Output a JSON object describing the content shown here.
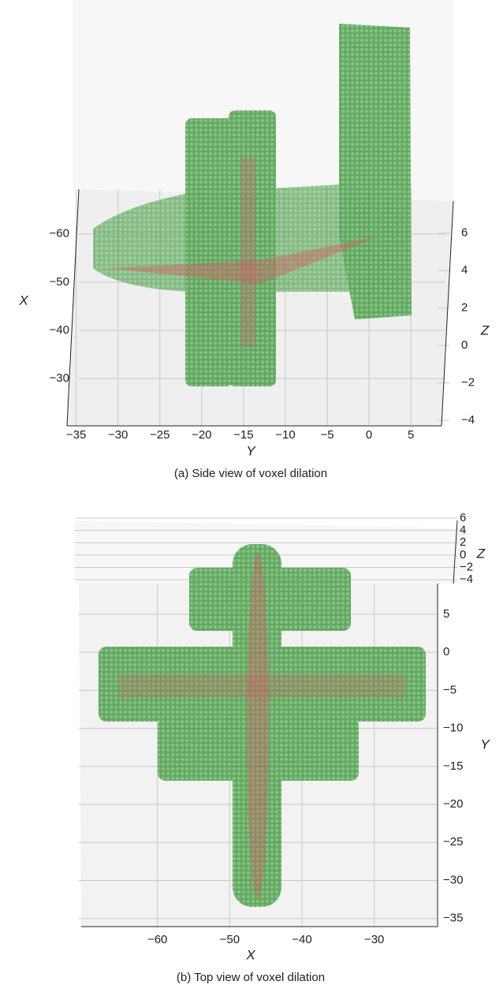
{
  "chart_data": [
    {
      "type": "scatter3d",
      "caption": "(a) Side view of voxel dilation",
      "xlabel": "X",
      "ylabel": "Y",
      "zlabel": "Z",
      "xlim": [
        -67,
        -22
      ],
      "ylim": [
        -36,
        8
      ],
      "zlim": [
        -4.5,
        7
      ],
      "xticks": [
        {
          "value": -60,
          "label": "−60"
        },
        {
          "value": -50,
          "label": "−50"
        },
        {
          "value": -40,
          "label": "−40"
        },
        {
          "value": -30,
          "label": "−30"
        }
      ],
      "yticks": [
        {
          "value": -35,
          "label": "−35"
        },
        {
          "value": -30,
          "label": "−30"
        },
        {
          "value": -25,
          "label": "−25"
        },
        {
          "value": -20,
          "label": "−20"
        },
        {
          "value": -15,
          "label": "−15"
        },
        {
          "value": -10,
          "label": "−10"
        },
        {
          "value": -5,
          "label": "−5"
        },
        0,
        5
      ],
      "zticks": [
        {
          "value": -4,
          "label": "−4"
        },
        {
          "value": -2,
          "label": "−2"
        },
        0,
        2,
        4,
        6
      ],
      "grid": true
    },
    {
      "type": "scatter3d",
      "caption": "(b) Top view of voxel dilation",
      "xlabel": "X",
      "ylabel": "Y",
      "zlabel": "Z",
      "xlim": [
        -70,
        -22
      ],
      "ylim": [
        -37,
        8
      ],
      "zlim": [
        -4.5,
        6
      ],
      "xticks": [
        {
          "value": -60,
          "label": "−60"
        },
        {
          "value": -50,
          "label": "−50"
        },
        {
          "value": -40,
          "label": "−40"
        },
        {
          "value": -30,
          "label": "−30"
        }
      ],
      "yticks": [
        5,
        0,
        {
          "value": -5,
          "label": "−5"
        },
        {
          "value": -10,
          "label": "−10"
        },
        {
          "value": -15,
          "label": "−15"
        },
        {
          "value": -20,
          "label": "−20"
        },
        {
          "value": -25,
          "label": "−25"
        },
        {
          "value": -30,
          "label": "−30"
        },
        {
          "value": -35,
          "label": "−35"
        }
      ],
      "zticks": [
        {
          "value": -4,
          "label": "−4"
        },
        {
          "value": -2,
          "label": "−2"
        },
        0,
        2,
        4,
        6
      ],
      "grid": true
    }
  ]
}
